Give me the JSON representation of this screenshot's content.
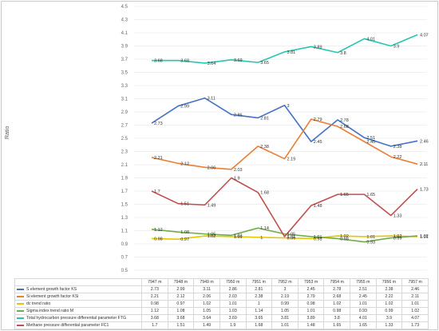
{
  "chart_data": {
    "type": "line",
    "ylabel": "Ratio",
    "ylim": [
      0.5,
      4.5
    ],
    "yticks": [
      "0.5",
      "0.7",
      "0.9",
      "1.1",
      "1.3",
      "1.5",
      "1.7",
      "1.9",
      "2.1",
      "2.3",
      "2.5",
      "2.7",
      "2.9",
      "3.1",
      "3.3",
      "3.5",
      "3.7",
      "3.9",
      "4.1",
      "4.3",
      "4.5"
    ],
    "categories": [
      "7947 m",
      "7948 m",
      "7949 m",
      "7950 m",
      "7951 m",
      "7952 m",
      "7953 m",
      "7954 m",
      "7955 m",
      "7956 m",
      "7957 m"
    ],
    "grid": true,
    "legend": "bottom-table",
    "series": [
      {
        "name": "S element growth factor KS",
        "color": "#4472c4",
        "values": [
          2.73,
          2.99,
          3.11,
          2.86,
          2.81,
          3,
          2.45,
          2.78,
          2.51,
          2.38,
          2.46
        ],
        "labels": [
          "2.73",
          "2.99",
          "3.11",
          "2.86",
          "2.81",
          "3",
          "2.45",
          "2.78",
          "2.51",
          "2.38",
          "2.46"
        ]
      },
      {
        "name": "Si element growth factor KSi",
        "color": "#ed7d31",
        "values": [
          2.21,
          2.12,
          2.06,
          2.03,
          2.38,
          2.19,
          2.79,
          2.68,
          2.45,
          2.22,
          2.11
        ],
        "labels": [
          "2.21",
          "2.12",
          "2.06",
          "2.03",
          "2.38",
          "2.19",
          "2.79",
          "2.68",
          "2.45",
          "2.22",
          "2.11"
        ]
      },
      {
        "name": "dc trend ratio",
        "color": "#e3c800",
        "values": [
          0.98,
          0.97,
          1.02,
          1.01,
          1,
          0.99,
          0.98,
          1.02,
          1.01,
          1.02,
          1.01
        ],
        "labels": [
          "0.98",
          "0.97",
          "1.02",
          "1.01",
          "1",
          "0.99",
          "0.98",
          "1.02",
          "1.01",
          "1.02",
          "1.01"
        ]
      },
      {
        "name": "Sigma index trend ratio M",
        "color": "#70ad47",
        "values": [
          1.12,
          1.08,
          1.05,
          1.03,
          1.14,
          1.05,
          1.01,
          0.98,
          0.93,
          0.99,
          1.02
        ],
        "labels": [
          "1.12",
          "1.08",
          "1.05",
          "1.03",
          "1.14",
          "1.05",
          "1.01",
          "0.98",
          "0.93",
          "0.99",
          "1.02"
        ]
      },
      {
        "name": "Total hydrocarbon pressure differential parameter FTG",
        "color": "#26c6b0",
        "values": [
          3.68,
          3.68,
          3.64,
          3.69,
          3.65,
          3.81,
          3.89,
          3.8,
          4.01,
          3.9,
          4.07
        ],
        "labels": [
          "3.68",
          "3.68",
          "3.64",
          "3.69",
          "3.65",
          "3.81",
          "3.89",
          "3.8",
          "4.01",
          "3.9",
          "4.07"
        ]
      },
      {
        "name": "Methane pressure differential parameter FC1",
        "color": "#c0504d",
        "values": [
          1.7,
          1.51,
          1.49,
          1.9,
          1.68,
          1.01,
          1.48,
          1.65,
          1.65,
          1.33,
          1.73
        ],
        "labels": [
          "1.7",
          "1.51",
          "1.49",
          "1.9",
          "1.68",
          "1.01",
          "1.48",
          "1.65",
          "1.65",
          "1.33",
          "1.73"
        ]
      }
    ]
  }
}
